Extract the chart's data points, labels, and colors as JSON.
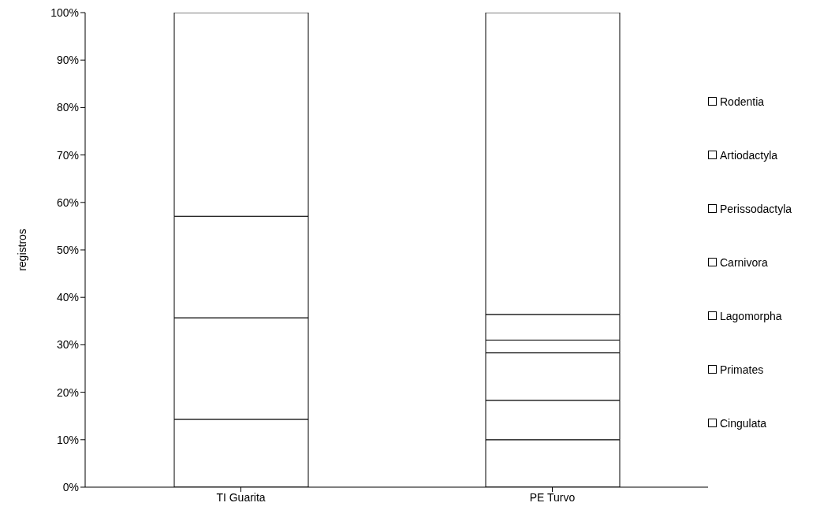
{
  "chart_data": {
    "type": "bar",
    "stacked": true,
    "ylabel": "registros",
    "categories": [
      "TI Guarita",
      "PE Turvo"
    ],
    "series": [
      {
        "name": "Cingulata",
        "color": "#ffffff",
        "values": [
          14.3,
          10.0
        ]
      },
      {
        "name": "Primates",
        "color": "#ffffff",
        "values": [
          21.4,
          8.3
        ]
      },
      {
        "name": "Lagomorpha",
        "color": "#ffffff",
        "values": [
          0,
          10.0
        ]
      },
      {
        "name": "Carnivora",
        "color": "#ffffff",
        "values": [
          21.4,
          2.7
        ]
      },
      {
        "name": "Perissodactyla",
        "color": "#ffffff",
        "values": [
          0,
          5.4
        ]
      },
      {
        "name": "Artiodactyla",
        "color": "#ffffff",
        "values": [
          0,
          0
        ]
      },
      {
        "name": "Rodentia",
        "color": "#ffffff",
        "values": [
          42.9,
          63.6
        ]
      }
    ],
    "ylim": [
      0,
      100
    ],
    "yticks": [
      {
        "value": 0,
        "label": "0%"
      },
      {
        "value": 10,
        "label": "10%"
      },
      {
        "value": 20,
        "label": "20%"
      },
      {
        "value": 30,
        "label": "30%"
      },
      {
        "value": 40,
        "label": "40%"
      },
      {
        "value": 50,
        "label": "50%"
      },
      {
        "value": 60,
        "label": "60%"
      },
      {
        "value": 70,
        "label": "70%"
      },
      {
        "value": 80,
        "label": "80%"
      },
      {
        "value": 90,
        "label": "90%"
      },
      {
        "value": 100,
        "label": "100%"
      }
    ],
    "grid": false,
    "legend": "right"
  }
}
